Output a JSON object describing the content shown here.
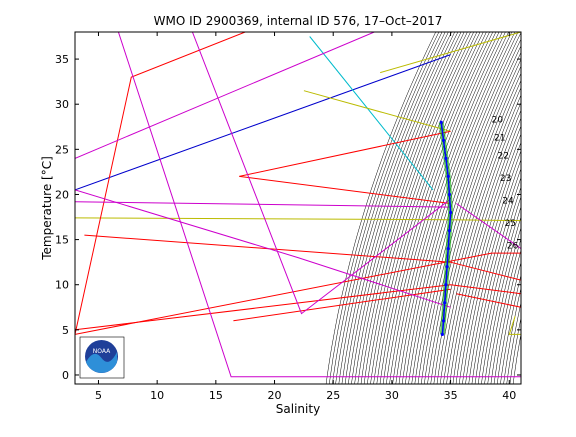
{
  "chart_data": {
    "type": "line",
    "title": "WMO ID 2900369, internal ID 576, 17–Oct–2017",
    "xlabel": "Salinity",
    "ylabel": "Temperature [°C]",
    "xlim": [
      3,
      41
    ],
    "ylim": [
      -1,
      38
    ],
    "xticks": [
      5,
      10,
      15,
      20,
      25,
      30,
      35,
      40
    ],
    "yticks": [
      0,
      5,
      10,
      15,
      20,
      25,
      30,
      35
    ],
    "grid": false,
    "series": [
      {
        "color": "#0000cc",
        "values": [
          [
            3,
            20.5
          ],
          [
            35,
            35.5
          ]
        ]
      },
      {
        "color": "#00bbcc",
        "values": [
          [
            23,
            37.5
          ],
          [
            33.5,
            20.5
          ]
        ]
      },
      {
        "color": "#bbbb00",
        "values": [
          [
            3,
            17.4
          ],
          [
            35,
            17.2
          ],
          [
            41,
            17.1
          ]
        ]
      },
      {
        "color": "#bbbb00",
        "values": [
          [
            29,
            33.5
          ],
          [
            37,
            36.5
          ],
          [
            41,
            38
          ]
        ]
      },
      {
        "color": "#bbbb00",
        "values": [
          [
            22.5,
            31.5
          ],
          [
            35,
            27
          ]
        ]
      },
      {
        "color": "#bbbb00",
        "values": [
          [
            40.5,
            6.5
          ],
          [
            40,
            4.5
          ],
          [
            41,
            4.5
          ]
        ]
      },
      {
        "color": "#ff0000",
        "values": [
          [
            3,
            4.5
          ],
          [
            7.8,
            33
          ],
          [
            17.5,
            38
          ]
        ]
      },
      {
        "color": "#ff0000",
        "values": [
          [
            3,
            4.5
          ],
          [
            38.5,
            13.5
          ],
          [
            41,
            13.5
          ]
        ]
      },
      {
        "color": "#ff0000",
        "values": [
          [
            3.8,
            15.5
          ],
          [
            35,
            12.5
          ],
          [
            41,
            10.5
          ]
        ]
      },
      {
        "color": "#ff0000",
        "values": [
          [
            17,
            22
          ],
          [
            35,
            27
          ]
        ]
      },
      {
        "color": "#ff0000",
        "values": [
          [
            17,
            22
          ],
          [
            35,
            19
          ]
        ]
      },
      {
        "color": "#ff0000",
        "values": [
          [
            3,
            5
          ],
          [
            35,
            10
          ],
          [
            41,
            9
          ]
        ]
      },
      {
        "color": "#ff0000",
        "values": [
          [
            16.5,
            6
          ],
          [
            35,
            9.5
          ]
        ]
      },
      {
        "color": "#ff0000",
        "values": [
          [
            35.5,
            9
          ],
          [
            41,
            7.5
          ]
        ]
      },
      {
        "color": "#cc00cc",
        "values": [
          [
            13,
            38
          ],
          [
            22.3,
            6.8
          ],
          [
            35,
            19.5
          ]
        ]
      },
      {
        "color": "#cc00cc",
        "values": [
          [
            6.7,
            38
          ],
          [
            16.3,
            -0.2
          ],
          [
            41,
            -0.2
          ]
        ]
      },
      {
        "color": "#cc00cc",
        "values": [
          [
            3,
            24
          ],
          [
            28.5,
            38
          ]
        ]
      },
      {
        "color": "#cc00cc",
        "values": [
          [
            3,
            19.2
          ],
          [
            35,
            18.6
          ]
        ]
      },
      {
        "color": "#cc00cc",
        "values": [
          [
            3,
            20.5
          ],
          [
            22,
            13
          ],
          [
            35,
            7.5
          ]
        ]
      },
      {
        "color": "#cc00cc",
        "values": [
          [
            35.5,
            19
          ],
          [
            41,
            14
          ]
        ]
      }
    ],
    "profile": [
      [
        34.3,
        4.5
      ],
      [
        34.4,
        6
      ],
      [
        34.5,
        8
      ],
      [
        34.6,
        10
      ],
      [
        34.7,
        12
      ],
      [
        34.8,
        14
      ],
      [
        34.9,
        16
      ],
      [
        35.0,
        18
      ],
      [
        34.9,
        20
      ],
      [
        34.8,
        22
      ],
      [
        34.6,
        24
      ],
      [
        34.4,
        26
      ],
      [
        34.2,
        28
      ]
    ],
    "density_labels": [
      {
        "text": "20",
        "x": 38.5,
        "y": 28
      },
      {
        "text": "21",
        "x": 38.7,
        "y": 26
      },
      {
        "text": "22",
        "x": 39.0,
        "y": 24
      },
      {
        "text": "23",
        "x": 39.2,
        "y": 21.5
      },
      {
        "text": "24",
        "x": 39.4,
        "y": 19
      },
      {
        "text": "25",
        "x": 39.6,
        "y": 16.5
      },
      {
        "text": "26",
        "x": 39.8,
        "y": 14
      }
    ],
    "logo_text": "NOAA"
  }
}
